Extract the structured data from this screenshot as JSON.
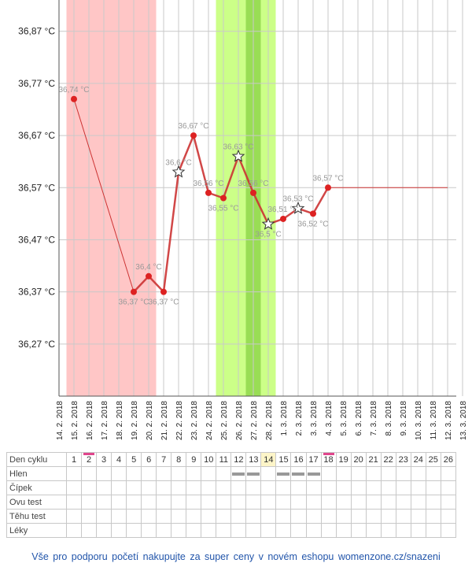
{
  "chart_data": {
    "type": "line",
    "title": "",
    "xlabel": "",
    "ylabel": "",
    "y_ticks": [
      "36,27 °C",
      "36,37 °C",
      "36,47 °C",
      "36,57 °C",
      "36,67 °C",
      "36,77 °C",
      "36,87 °C"
    ],
    "y_tick_values": [
      36.27,
      36.37,
      36.47,
      36.57,
      36.67,
      36.77,
      36.87
    ],
    "ylim": [
      36.17,
      36.93
    ],
    "x_dates": [
      "14. 2. 2018",
      "15. 2. 2018",
      "16. 2. 2018",
      "17. 2. 2018",
      "18. 2. 2018",
      "19. 2. 2018",
      "20. 2. 2018",
      "21. 2. 2018",
      "22. 2. 2018",
      "23. 2. 2018",
      "24. 2. 2018",
      "25. 2. 2018",
      "26. 2. 2018",
      "27. 2. 2018",
      "28. 2. 2018",
      "1. 3. 2018",
      "2. 3. 2018",
      "3. 3. 2018",
      "4. 3. 2018",
      "5. 3. 2018",
      "6. 3. 2018",
      "7. 3. 2018",
      "8. 3. 2018",
      "9. 3. 2018",
      "10. 3. 2018",
      "11. 3. 2018",
      "12. 3. 2018",
      "13. 3. 2018"
    ],
    "bands": [
      {
        "kind": "menstruation",
        "from": "14. 2. 2018",
        "to": "20. 2. 2018",
        "color": "#ffc6c6"
      },
      {
        "kind": "fertile",
        "from": "24. 2. 2018",
        "to": "28. 2. 2018",
        "color": "#ccff88"
      },
      {
        "kind": "fertile-peak",
        "from": "26. 2. 2018",
        "to": "27. 2. 2018",
        "color": "#99dd55"
      }
    ],
    "series": [
      {
        "points": [
          {
            "date": "15. 2. 2018",
            "value": 36.74,
            "label": "36,74 °C",
            "marker": "dot"
          },
          {
            "date": "19. 2. 2018",
            "value": 36.37,
            "label": "36,37 °C",
            "marker": "dot"
          },
          {
            "date": "20. 2. 2018",
            "value": 36.4,
            "label": "36,4 °C",
            "marker": "dot"
          },
          {
            "date": "21. 2. 2018",
            "value": 36.37,
            "label": "36,37 °C",
            "marker": "dot"
          },
          {
            "date": "22. 2. 2018",
            "value": 36.6,
            "label": "36,6 °C",
            "marker": "star"
          },
          {
            "date": "23. 2. 2018",
            "value": 36.67,
            "label": "36,67 °C",
            "marker": "dot"
          },
          {
            "date": "24. 2. 2018",
            "value": 36.56,
            "label": "36,56 °C",
            "marker": "dot"
          },
          {
            "date": "25. 2. 2018",
            "value": 36.55,
            "label": "36,55 °C",
            "marker": "dot"
          },
          {
            "date": "26. 2. 2018",
            "value": 36.63,
            "label": "36,63 °C",
            "marker": "star"
          },
          {
            "date": "27. 2. 2018",
            "value": 36.56,
            "label": "36,56 °C",
            "marker": "dot"
          },
          {
            "date": "28. 2. 2018",
            "value": 36.5,
            "label": "36,5 °C",
            "marker": "star"
          },
          {
            "date": "1. 3. 2018",
            "value": 36.51,
            "label": "36,51 °C",
            "marker": "dot"
          },
          {
            "date": "2. 3. 2018",
            "value": 36.53,
            "label": "36,53 °C",
            "marker": "star"
          },
          {
            "date": "3. 3. 2018",
            "value": 36.52,
            "label": "36,52 °C",
            "marker": "dot"
          },
          {
            "date": "4. 3. 2018",
            "value": 36.57,
            "label": "36,57 °C",
            "marker": "dot"
          }
        ],
        "extension": {
          "from": "4. 3. 2018",
          "to": "12. 3. 2018",
          "value": 36.57
        },
        "color": "#cc3333"
      }
    ]
  },
  "cycle_table": {
    "rows": [
      {
        "label": "Den cyklu",
        "cells": [
          "1",
          "2",
          "3",
          "4",
          "5",
          "6",
          "7",
          "8",
          "9",
          "10",
          "11",
          "12",
          "13",
          "14",
          "15",
          "16",
          "17",
          "18",
          "19",
          "20",
          "21",
          "22",
          "23",
          "24",
          "25",
          "26"
        ]
      },
      {
        "label": "Hlen",
        "cells": [
          "",
          "",
          "",
          "",
          "",
          "",
          "",
          "",
          "",
          "",
          "",
          "bar",
          "bar",
          "",
          "bar",
          "bar",
          "bar",
          "",
          "",
          "",
          "",
          "",
          "",
          "",
          "",
          ""
        ]
      },
      {
        "label": "Čípek",
        "cells": [
          "",
          "",
          "",
          "",
          "",
          "",
          "",
          "",
          "",
          "",
          "",
          "",
          "",
          "",
          "",
          "",
          "",
          "",
          "",
          "",
          "",
          "",
          "",
          "",
          "",
          ""
        ]
      },
      {
        "label": "Ovu test",
        "cells": [
          "",
          "",
          "",
          "",
          "",
          "",
          "",
          "",
          "",
          "",
          "",
          "",
          "",
          "",
          "",
          "",
          "",
          "",
          "",
          "",
          "",
          "",
          "",
          "",
          "",
          ""
        ]
      },
      {
        "label": "Těhu test",
        "cells": [
          "",
          "",
          "",
          "",
          "",
          "",
          "",
          "",
          "",
          "",
          "",
          "",
          "",
          "",
          "",
          "",
          "",
          "",
          "",
          "",
          "",
          "",
          "",
          "",
          "",
          ""
        ]
      },
      {
        "label": "Léky",
        "cells": [
          "",
          "",
          "",
          "",
          "",
          "",
          "",
          "",
          "",
          "",
          "",
          "",
          "",
          "",
          "",
          "",
          "",
          "",
          "",
          "",
          "",
          "",
          "",
          "",
          "",
          ""
        ]
      }
    ],
    "highlight_day": "14",
    "marked_days": [
      "2",
      "18"
    ],
    "mark_color": "#e0468c"
  },
  "footer": {
    "text": "Vše pro podporu početí nakupujte za super ceny v novém eshopu womenzone.cz/snazeni"
  }
}
